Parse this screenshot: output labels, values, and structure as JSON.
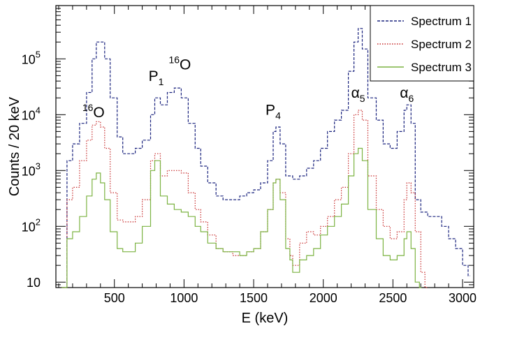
{
  "chart_data": {
    "type": "line",
    "xlabel": "E (keV)",
    "ylabel": "Counts / 20 keV",
    "xlim": [
      80,
      3080
    ],
    "ylim": [
      8,
      900000
    ],
    "yscale": "log",
    "grid": false,
    "legend_placement": "top-right",
    "x_ticks": [
      500,
      1000,
      1500,
      2000,
      2500,
      3000
    ],
    "x_tick_labels": [
      "500",
      "1000",
      "1500",
      "2000",
      "2500",
      "3000"
    ],
    "y_ticks": [
      10,
      100,
      1000,
      10000,
      100000
    ],
    "y_tick_labels": [
      {
        "base": "10",
        "exp": ""
      },
      {
        "base": "10",
        "exp": "2"
      },
      {
        "base": "10",
        "exp": "3"
      },
      {
        "base": "10",
        "exp": "4"
      },
      {
        "base": "10",
        "exp": "5"
      }
    ],
    "series": [
      {
        "name": "Spectrum 1",
        "color": "#1a237e",
        "dash": "dashed",
        "points": [
          [
            120,
            8
          ],
          [
            160,
            1500
          ],
          [
            200,
            3000
          ],
          [
            250,
            7000
          ],
          [
            300,
            25000
          ],
          [
            340,
            100000
          ],
          [
            370,
            200000
          ],
          [
            400,
            200000
          ],
          [
            430,
            100000
          ],
          [
            470,
            20000
          ],
          [
            520,
            4000
          ],
          [
            560,
            2000
          ],
          [
            600,
            2000
          ],
          [
            650,
            2500
          ],
          [
            700,
            3500
          ],
          [
            760,
            10000
          ],
          [
            790,
            20000
          ],
          [
            830,
            15000
          ],
          [
            880,
            25000
          ],
          [
            930,
            30000
          ],
          [
            980,
            20000
          ],
          [
            1030,
            7000
          ],
          [
            1080,
            2500
          ],
          [
            1120,
            1200
          ],
          [
            1170,
            600
          ],
          [
            1230,
            350
          ],
          [
            1280,
            300
          ],
          [
            1350,
            300
          ],
          [
            1400,
            350
          ],
          [
            1450,
            400
          ],
          [
            1500,
            450
          ],
          [
            1550,
            600
          ],
          [
            1600,
            1500
          ],
          [
            1640,
            5000
          ],
          [
            1660,
            6000
          ],
          [
            1690,
            3000
          ],
          [
            1730,
            800
          ],
          [
            1780,
            700
          ],
          [
            1830,
            800
          ],
          [
            1880,
            1100
          ],
          [
            1930,
            1500
          ],
          [
            1980,
            2500
          ],
          [
            2030,
            5000
          ],
          [
            2080,
            8000
          ],
          [
            2130,
            12000
          ],
          [
            2180,
            60000
          ],
          [
            2220,
            200000
          ],
          [
            2250,
            350000
          ],
          [
            2280,
            150000
          ],
          [
            2320,
            20000
          ],
          [
            2380,
            8000
          ],
          [
            2430,
            3000
          ],
          [
            2480,
            2500
          ],
          [
            2530,
            5000
          ],
          [
            2580,
            12000
          ],
          [
            2600,
            15000
          ],
          [
            2630,
            7000
          ],
          [
            2660,
            300
          ],
          [
            2700,
            180
          ],
          [
            2750,
            150
          ],
          [
            2800,
            150
          ],
          [
            2850,
            100
          ],
          [
            2900,
            60
          ],
          [
            2950,
            40
          ],
          [
            3000,
            20
          ],
          [
            3040,
            13
          ]
        ]
      },
      {
        "name": "Spectrum 2",
        "color": "#c62828",
        "dash": "dotted",
        "points": [
          [
            120,
            8
          ],
          [
            160,
            300
          ],
          [
            200,
            500
          ],
          [
            250,
            1500
          ],
          [
            300,
            3500
          ],
          [
            340,
            6500
          ],
          [
            370,
            7500
          ],
          [
            400,
            6000
          ],
          [
            430,
            2500
          ],
          [
            470,
            400
          ],
          [
            520,
            130
          ],
          [
            560,
            120
          ],
          [
            600,
            120
          ],
          [
            650,
            150
          ],
          [
            700,
            300
          ],
          [
            760,
            1500
          ],
          [
            790,
            2000
          ],
          [
            830,
            800
          ],
          [
            880,
            1000
          ],
          [
            930,
            1000
          ],
          [
            980,
            900
          ],
          [
            1030,
            400
          ],
          [
            1080,
            200
          ],
          [
            1120,
            120
          ],
          [
            1170,
            70
          ],
          [
            1230,
            40
          ],
          [
            1280,
            35
          ],
          [
            1350,
            30
          ],
          [
            1400,
            30
          ],
          [
            1450,
            35
          ],
          [
            1500,
            40
          ],
          [
            1550,
            80
          ],
          [
            1600,
            200
          ],
          [
            1640,
            600
          ],
          [
            1660,
            700
          ],
          [
            1690,
            400
          ],
          [
            1730,
            60
          ],
          [
            1760,
            30
          ],
          [
            1780,
            20
          ],
          [
            1830,
            50
          ],
          [
            1880,
            80
          ],
          [
            1930,
            70
          ],
          [
            1980,
            100
          ],
          [
            2030,
            150
          ],
          [
            2080,
            300
          ],
          [
            2130,
            500
          ],
          [
            2180,
            2000
          ],
          [
            2220,
            10000
          ],
          [
            2250,
            12000
          ],
          [
            2280,
            8000
          ],
          [
            2320,
            800
          ],
          [
            2380,
            200
          ],
          [
            2430,
            100
          ],
          [
            2480,
            60
          ],
          [
            2530,
            80
          ],
          [
            2580,
            300
          ],
          [
            2600,
            600
          ],
          [
            2630,
            400
          ],
          [
            2660,
            80
          ],
          [
            2700,
            15
          ],
          [
            2730,
            8
          ]
        ]
      },
      {
        "name": "Spectrum 3",
        "color": "#7cb342",
        "dash": "solid",
        "points": [
          [
            120,
            8
          ],
          [
            160,
            60
          ],
          [
            200,
            80
          ],
          [
            250,
            150
          ],
          [
            300,
            350
          ],
          [
            340,
            700
          ],
          [
            370,
            900
          ],
          [
            400,
            600
          ],
          [
            430,
            300
          ],
          [
            470,
            80
          ],
          [
            520,
            40
          ],
          [
            560,
            35
          ],
          [
            600,
            35
          ],
          [
            650,
            50
          ],
          [
            700,
            100
          ],
          [
            760,
            1000
          ],
          [
            790,
            1500
          ],
          [
            830,
            350
          ],
          [
            880,
            250
          ],
          [
            930,
            200
          ],
          [
            980,
            180
          ],
          [
            1030,
            150
          ],
          [
            1080,
            100
          ],
          [
            1120,
            80
          ],
          [
            1170,
            50
          ],
          [
            1230,
            40
          ],
          [
            1280,
            35
          ],
          [
            1350,
            35
          ],
          [
            1400,
            30
          ],
          [
            1450,
            35
          ],
          [
            1500,
            40
          ],
          [
            1550,
            80
          ],
          [
            1600,
            200
          ],
          [
            1640,
            600
          ],
          [
            1660,
            700
          ],
          [
            1690,
            300
          ],
          [
            1730,
            40
          ],
          [
            1760,
            25
          ],
          [
            1780,
            15
          ],
          [
            1830,
            25
          ],
          [
            1880,
            30
          ],
          [
            1930,
            40
          ],
          [
            1980,
            70
          ],
          [
            2030,
            100
          ],
          [
            2080,
            150
          ],
          [
            2130,
            250
          ],
          [
            2180,
            800
          ],
          [
            2220,
            2000
          ],
          [
            2250,
            2500
          ],
          [
            2280,
            1500
          ],
          [
            2320,
            200
          ],
          [
            2380,
            60
          ],
          [
            2430,
            30
          ],
          [
            2480,
            25
          ],
          [
            2530,
            30
          ],
          [
            2580,
            60
          ],
          [
            2600,
            80
          ],
          [
            2630,
            40
          ],
          [
            2660,
            10
          ],
          [
            2690,
            8
          ]
        ]
      }
    ],
    "annotations": [
      {
        "x": 350,
        "y": 9000,
        "text": "O",
        "pre_sup": "16",
        "sub": ""
      },
      {
        "x": 800,
        "y": 40000,
        "text": "P",
        "pre_sup": "",
        "sub": "1"
      },
      {
        "x": 970,
        "y": 65000,
        "text": "O",
        "pre_sup": "16",
        "sub": ""
      },
      {
        "x": 1640,
        "y": 10000,
        "text": "P",
        "pre_sup": "",
        "sub": "4"
      },
      {
        "x": 2250,
        "y": 20000,
        "text": "α",
        "pre_sup": "",
        "sub": "5"
      },
      {
        "x": 2600,
        "y": 20000,
        "text": "α",
        "pre_sup": "",
        "sub": "6"
      }
    ]
  }
}
